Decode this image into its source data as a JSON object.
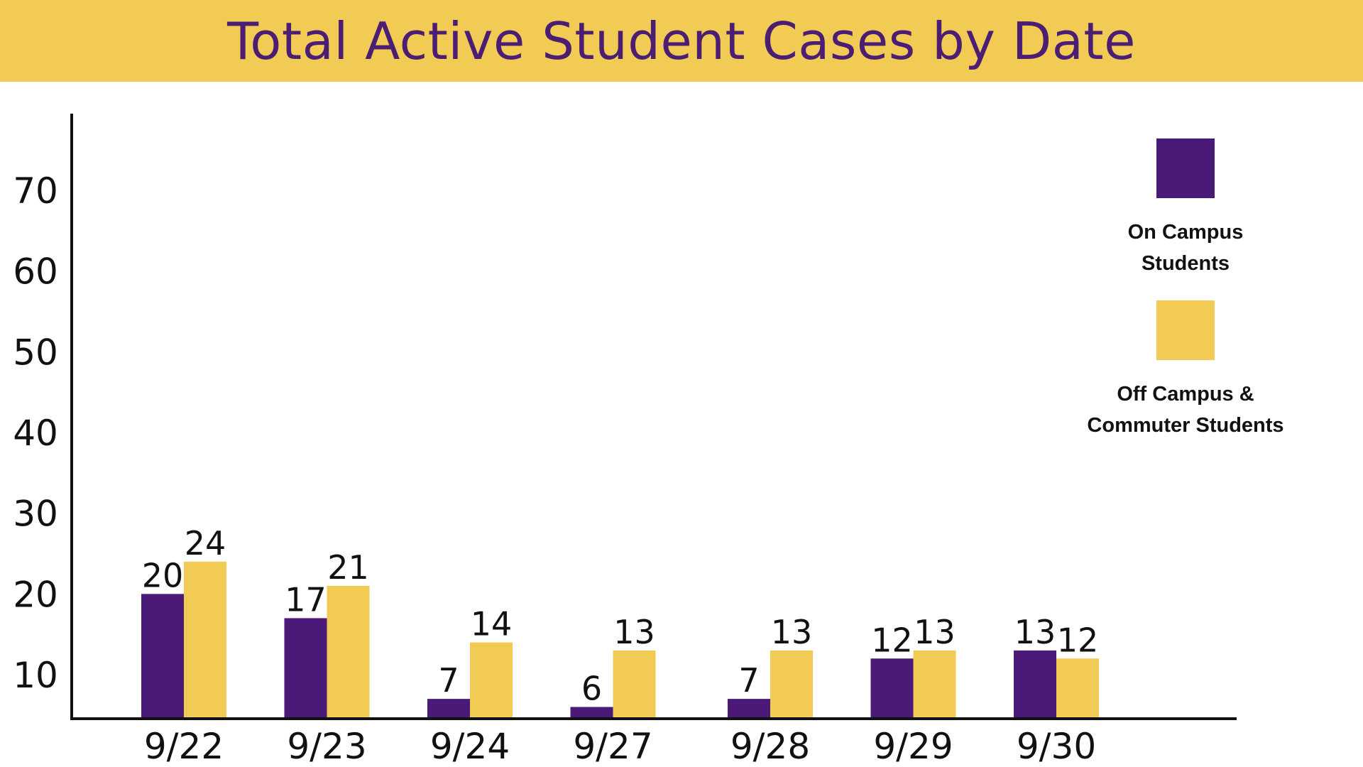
{
  "chart_data": {
    "type": "bar",
    "title": "Total Active Student Cases by Date",
    "categories": [
      "9/22",
      "9/23",
      "9/24",
      "9/27",
      "9/28",
      "9/29",
      "9/30"
    ],
    "series": [
      {
        "name": "On Campus Students",
        "color": "#4B1A78",
        "values": [
          20,
          17,
          7,
          6,
          7,
          12,
          13
        ]
      },
      {
        "name": "Off Campus & Commuter Students",
        "color": "#F2CB55",
        "values": [
          24,
          21,
          14,
          13,
          13,
          13,
          12
        ]
      }
    ],
    "yticks": [
      10,
      20,
      30,
      40,
      50,
      60,
      70
    ],
    "ylim": [
      3,
      78
    ],
    "grid": false,
    "legend_position": "right"
  },
  "legend": {
    "on_campus_label": "On Campus\nStudents",
    "off_campus_label": "Off Campus &\nCommuter Students"
  },
  "colors": {
    "title_band": "#F2CB55",
    "title_text": "#4B1E73"
  }
}
